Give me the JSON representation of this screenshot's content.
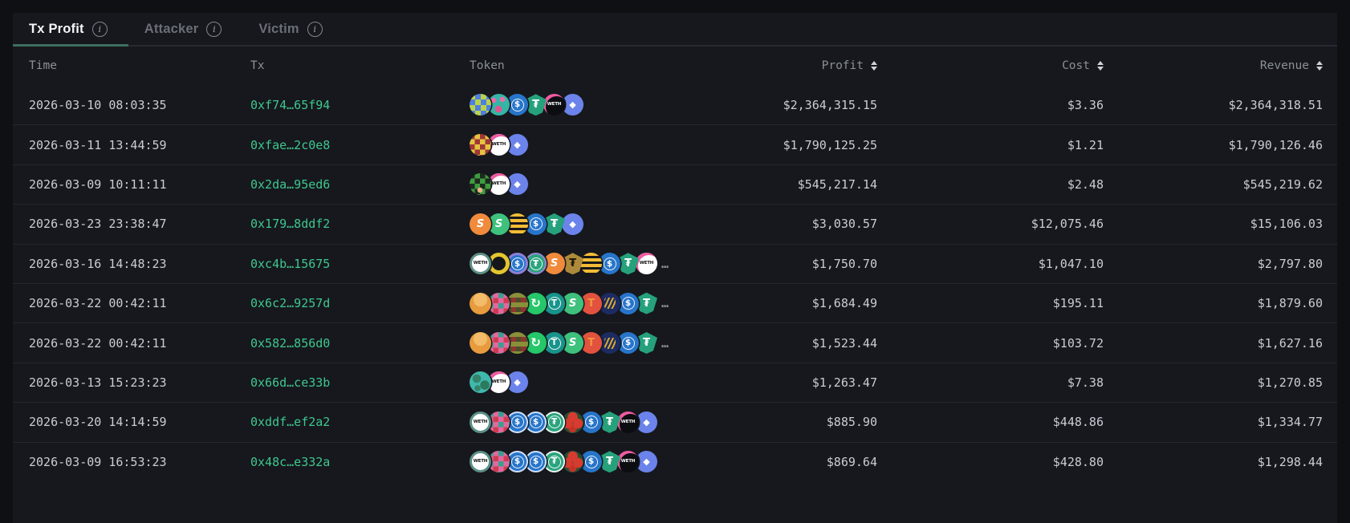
{
  "tabs": [
    {
      "label": "Tx Profit",
      "active": true
    },
    {
      "label": "Attacker",
      "active": false
    },
    {
      "label": "Victim",
      "active": false
    }
  ],
  "icons": {
    "info": "i",
    "ellipsis": "…"
  },
  "colors": {
    "accent_underline": "#3d6e5e",
    "tx_link_green": "#3fc78f",
    "card_background": "#16181d",
    "page_background": "#0f1013"
  },
  "token_styles": {
    "pepe-checker": {
      "glyph": ""
    },
    "teal-pink-dots": {
      "glyph": ""
    },
    "usdc": {
      "glyph": "$"
    },
    "usdc-ring": {
      "glyph": "$"
    },
    "usdc-ring-white": {
      "glyph": "$"
    },
    "usdt-shield": {
      "glyph": "₮"
    },
    "usdt-gold": {
      "glyph": "₮"
    },
    "weth": {
      "glyph": "WETH"
    },
    "weth-dark": {
      "glyph": "WETH"
    },
    "weth-ring": {
      "glyph": "WETH"
    },
    "eth": {
      "glyph": "◆"
    },
    "checker-yellow-red": {
      "glyph": ""
    },
    "checker-green": {
      "glyph": ""
    },
    "s-orange": {
      "glyph": "S"
    },
    "s-green": {
      "glyph": "S"
    },
    "stripes-yellow": {
      "glyph": ""
    },
    "ring-yellow": {
      "glyph": ""
    },
    "t-green-ring": {
      "glyph": "₮"
    },
    "t-green": {
      "glyph": "₮"
    },
    "t-teal": {
      "glyph": "T"
    },
    "orange-blob": {
      "glyph": ""
    },
    "checker-pink-red": {
      "glyph": ""
    },
    "checker-olive": {
      "glyph": ""
    },
    "repeat-green": {
      "glyph": "↻"
    },
    "red-token": {
      "glyph": "T"
    },
    "navy-gold": {
      "glyph": ""
    },
    "globe-teal": {
      "glyph": ""
    },
    "red-clover": {
      "glyph": ""
    }
  },
  "table": {
    "columns": [
      {
        "key": "time",
        "label": "Time",
        "sortable": false
      },
      {
        "key": "tx",
        "label": "Tx",
        "sortable": false
      },
      {
        "key": "token",
        "label": "Token",
        "sortable": false
      },
      {
        "key": "profit",
        "label": "Profit",
        "sortable": true
      },
      {
        "key": "cost",
        "label": "Cost",
        "sortable": true
      },
      {
        "key": "revenue",
        "label": "Revenue",
        "sortable": true
      }
    ],
    "rows": [
      {
        "time": "2026-03-10 08:03:35",
        "tx": "0xf74…65f94",
        "tokens": [
          "pepe-checker",
          "teal-pink-dots",
          "usdc",
          "usdt-shield",
          "weth-dark",
          "eth"
        ],
        "more": false,
        "profit": "$2,364,315.15",
        "cost": "$3.36",
        "revenue": "$2,364,318.51"
      },
      {
        "time": "2026-03-11 13:44:59",
        "tx": "0xfae…2c0e8",
        "tokens": [
          "checker-yellow-red",
          "weth",
          "eth"
        ],
        "more": false,
        "profit": "$1,790,125.25",
        "cost": "$1.21",
        "revenue": "$1,790,126.46"
      },
      {
        "time": "2026-03-09 10:11:11",
        "tx": "0x2da…95ed6",
        "tokens": [
          "checker-green",
          "weth",
          "eth"
        ],
        "more": false,
        "profit": "$545,217.14",
        "cost": "$2.48",
        "revenue": "$545,219.62"
      },
      {
        "time": "2026-03-23 23:38:47",
        "tx": "0x179…8ddf2",
        "tokens": [
          "s-orange",
          "s-green",
          "stripes-yellow",
          "usdc",
          "usdt-shield",
          "eth"
        ],
        "more": false,
        "profit": "$3,030.57",
        "cost": "$12,075.46",
        "revenue": "$15,106.03"
      },
      {
        "time": "2026-03-16 14:48:23",
        "tx": "0xc4b…15675",
        "tokens": [
          "weth-ring",
          "ring-yellow",
          "usdc-ring",
          "t-green-ring",
          "s-orange",
          "usdt-gold",
          "stripes-yellow",
          "usdc",
          "usdt-shield",
          "weth"
        ],
        "more": true,
        "profit": "$1,750.70",
        "cost": "$1,047.10",
        "revenue": "$2,797.80"
      },
      {
        "time": "2026-03-22 00:42:11",
        "tx": "0x6c2…9257d",
        "tokens": [
          "orange-blob",
          "checker-pink-red",
          "checker-olive",
          "repeat-green",
          "t-teal",
          "s-green",
          "red-token",
          "navy-gold",
          "usdc",
          "usdt-shield"
        ],
        "more": true,
        "profit": "$1,684.49",
        "cost": "$195.11",
        "revenue": "$1,879.60"
      },
      {
        "time": "2026-03-22 00:42:11",
        "tx": "0x582…856d0",
        "tokens": [
          "orange-blob",
          "checker-pink-red",
          "checker-olive",
          "repeat-green",
          "t-teal",
          "s-green",
          "red-token",
          "navy-gold",
          "usdc",
          "usdt-shield"
        ],
        "more": true,
        "profit": "$1,523.44",
        "cost": "$103.72",
        "revenue": "$1,627.16"
      },
      {
        "time": "2026-03-13 15:23:23",
        "tx": "0x66d…ce33b",
        "tokens": [
          "globe-teal",
          "weth",
          "eth"
        ],
        "more": false,
        "profit": "$1,263.47",
        "cost": "$7.38",
        "revenue": "$1,270.85"
      },
      {
        "time": "2026-03-20 14:14:59",
        "tx": "0xddf…ef2a2",
        "tokens": [
          "weth-ring",
          "checker-pink-red",
          "usdc-ring-white",
          "usdc-ring-white",
          "t-green",
          "red-clover",
          "usdc",
          "usdt-shield",
          "weth-dark",
          "eth"
        ],
        "more": false,
        "profit": "$885.90",
        "cost": "$448.86",
        "revenue": "$1,334.77"
      },
      {
        "time": "2026-03-09 16:53:23",
        "tx": "0x48c…e332a",
        "tokens": [
          "weth-ring",
          "checker-pink-red",
          "usdc-ring-white",
          "usdc-ring-white",
          "t-green",
          "red-clover",
          "usdc",
          "usdt-shield",
          "weth-dark",
          "eth"
        ],
        "more": false,
        "profit": "$869.64",
        "cost": "$428.80",
        "revenue": "$1,298.44"
      }
    ]
  }
}
